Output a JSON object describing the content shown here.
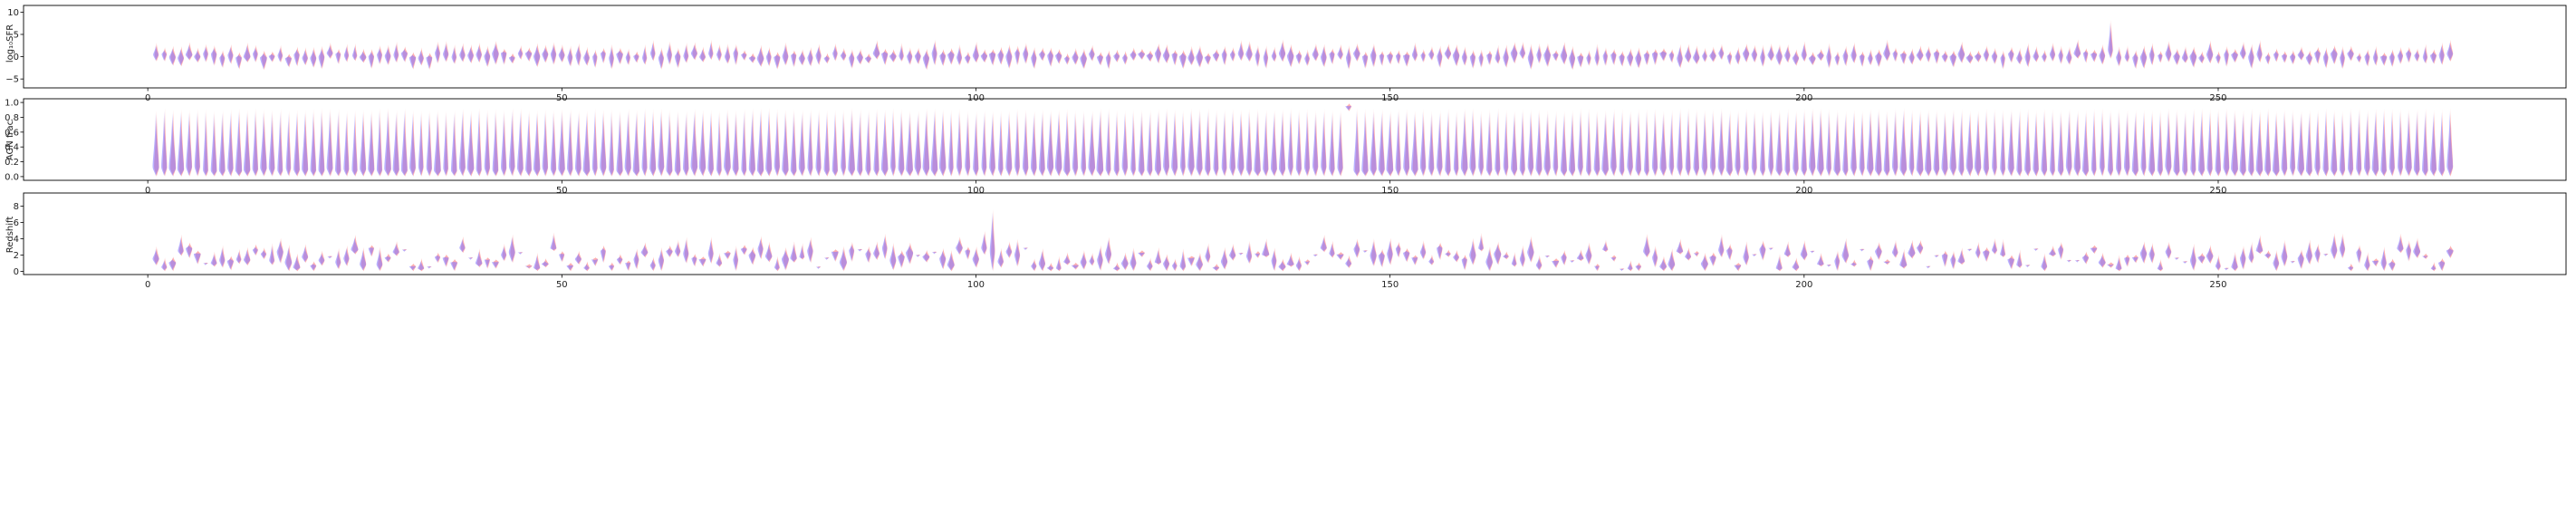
{
  "chart_data": [
    {
      "type": "violin",
      "ylabel": "log₁₀SFR",
      "ylim": [
        -7,
        11.5
      ],
      "xlim": [
        -15,
        292
      ],
      "xticks": [
        0,
        50,
        100,
        150,
        200,
        250
      ],
      "xtick_labels": [
        "0",
        "50",
        "100",
        "150",
        "200",
        "250"
      ],
      "yticks": [
        -5,
        0,
        5,
        10
      ],
      "ytick_labels": [
        "−5",
        "0",
        "5",
        "10"
      ],
      "n_positions": 278,
      "position_range": [
        1,
        278
      ],
      "typical_range": [
        -2,
        2.5
      ],
      "max_peak": 8.5,
      "max_peak_at": 237,
      "grid": false,
      "series": [
        {
          "color": "#ff6f6f",
          "alpha": 0.55
        },
        {
          "color": "#7f72ff",
          "alpha": 0.55
        }
      ]
    },
    {
      "type": "violin",
      "ylabel": "AGN frac",
      "ylim": [
        -0.05,
        1.05
      ],
      "xlim": [
        -15,
        292
      ],
      "xticks": [
        0,
        50,
        100,
        150,
        200,
        250
      ],
      "xtick_labels": [
        "0",
        "50",
        "100",
        "150",
        "200",
        "250"
      ],
      "yticks": [
        0.0,
        0.2,
        0.4,
        0.6,
        0.8,
        1.0
      ],
      "ytick_labels": [
        "0.0",
        "0.2",
        "0.4",
        "0.6",
        "0.8",
        "1.0"
      ],
      "n_positions": 278,
      "position_range": [
        1,
        278
      ],
      "typical_range": [
        0.0,
        0.92
      ],
      "outlier": {
        "x": 145,
        "range": [
          0.88,
          1.0
        ]
      },
      "grid": false,
      "series": [
        {
          "color": "#ff6f6f",
          "alpha": 0.55
        },
        {
          "color": "#7f72ff",
          "alpha": 0.55
        }
      ]
    },
    {
      "type": "violin",
      "ylabel": "Redshift",
      "ylim": [
        -0.4,
        9.6
      ],
      "xlim": [
        -15,
        292
      ],
      "xticks": [
        0,
        50,
        100,
        150,
        200,
        250
      ],
      "xtick_labels": [
        "0",
        "50",
        "100",
        "150",
        "200",
        "250"
      ],
      "yticks": [
        0,
        2,
        4,
        6,
        8
      ],
      "ytick_labels": [
        "0",
        "2",
        "4",
        "6",
        "8"
      ],
      "n_positions": 278,
      "position_range": [
        1,
        278
      ],
      "typical_range": [
        0,
        4
      ],
      "max_peak": 7.7,
      "max_peak_at": 102,
      "grid": false,
      "series": [
        {
          "color": "#ff6f6f",
          "alpha": 0.55
        },
        {
          "color": "#7f72ff",
          "alpha": 0.55
        }
      ]
    }
  ]
}
